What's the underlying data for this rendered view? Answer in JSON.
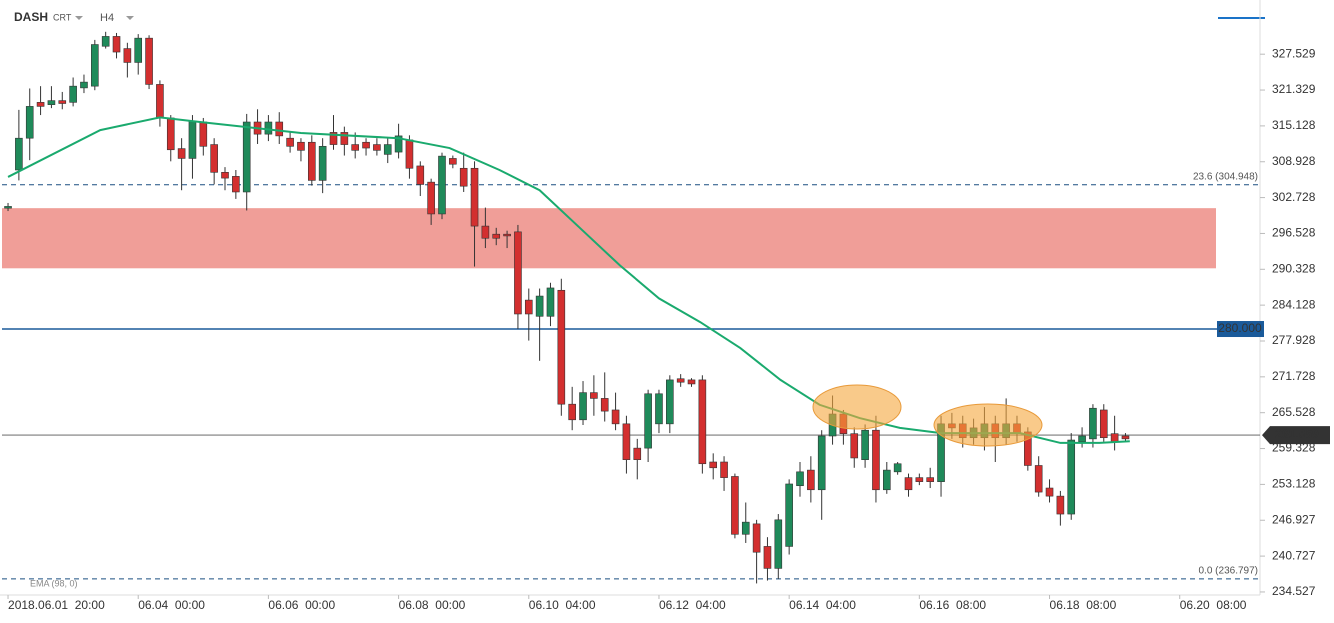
{
  "chart_data": {
    "type": "candlestick",
    "symbol": "DASH",
    "source": "CRT",
    "timeframe": "H4",
    "up_color": "#1f8a5a",
    "down_color": "#d32f2f",
    "ylim": [
      234.0,
      336.9
    ],
    "yticks": [
      327.529,
      321.329,
      315.128,
      308.928,
      302.728,
      296.528,
      290.328,
      284.128,
      277.928,
      271.728,
      265.528,
      259.328,
      253.128,
      246.927,
      240.727,
      234.527
    ],
    "xlim": [
      -0.74,
      115.4
    ],
    "xticks": [
      {
        "value": 0,
        "label": "2018.06.01  20:00"
      },
      {
        "value": 12,
        "label": "06.04  00:00"
      },
      {
        "value": 24,
        "label": "06.06  00:00"
      },
      {
        "value": 36,
        "label": "06.08  00:00"
      },
      {
        "value": 48,
        "label": "06.10  04:00"
      },
      {
        "value": 60,
        "label": "06.12  04:00"
      },
      {
        "value": 72,
        "label": "06.14  04:00"
      },
      {
        "value": 84,
        "label": "06.16  08:00"
      },
      {
        "value": 96,
        "label": "06.18  08:00"
      },
      {
        "value": 108,
        "label": "06.20  08:00"
      }
    ],
    "open": [
      300.9,
      307.5,
      313.0,
      319.2,
      318.8,
      319.5,
      319.2,
      321.7,
      322,
      328.9,
      330.6,
      328.5,
      326.1,
      330.3,
      322.3,
      316.5,
      311.2,
      309.5,
      315.8,
      311.9,
      307.1,
      306.4,
      303.7,
      315.8,
      313.7,
      315.8,
      313,
      312.3,
      312.3,
      305.7,
      314,
      314,
      311.9,
      312.3,
      311.9,
      310.2,
      310.6,
      312.7,
      308.2,
      305.4,
      299.9,
      309.5,
      307.8,
      307.8,
      297.8,
      296.4,
      296.4,
      296.8,
      285,
      282.2,
      282.2,
      286.7,
      267,
      264.3,
      269,
      268,
      266,
      263.6,
      259.4,
      259.4,
      263.6,
      263.6,
      271.4,
      271.2,
      271.2,
      257,
      257,
      254.5,
      244.5,
      246.3,
      242.4,
      238.6,
      242.4,
      252.9,
      255.6,
      252.2,
      261.5,
      265.3,
      261.9,
      257.4,
      262.5,
      252.2,
      255.3,
      254.3,
      254.3,
      254.3,
      253.6,
      263.6,
      263.6,
      261.2,
      261.2,
      263.6,
      261.2,
      263.6,
      262.2,
      256.4,
      252.5,
      251.1,
      248,
      260.5,
      261,
      266,
      261.9,
      261.5
    ],
    "high": [
      301.8,
      317.9,
      321.6,
      322,
      322,
      321,
      323.5,
      324,
      330,
      331.4,
      331.2,
      329.5,
      331,
      330.8,
      323,
      317,
      313,
      317,
      316.5,
      313,
      308,
      307.5,
      317.2,
      318,
      317,
      317.5,
      314,
      313,
      313.5,
      313,
      317,
      315,
      314,
      313,
      313,
      313,
      315.5,
      313.5,
      309,
      306,
      310.5,
      310,
      310.5,
      309,
      301,
      297.5,
      297,
      298,
      287,
      287,
      288,
      288.7,
      270,
      271,
      272,
      272.5,
      269,
      265,
      261,
      269.5,
      269.5,
      272,
      272.2,
      271.5,
      272,
      258.5,
      258,
      255,
      250,
      247,
      244,
      248,
      254,
      257,
      258,
      262.5,
      268.5,
      266,
      263,
      263.5,
      265,
      257,
      257,
      255,
      255,
      256,
      265,
      265.5,
      265,
      264.5,
      266.5,
      265,
      268,
      265,
      263,
      258,
      254,
      252,
      262,
      263,
      267,
      267,
      265,
      262
    ],
    "low": [
      300.4,
      305.7,
      309.2,
      317,
      318.2,
      318,
      318.5,
      320.8,
      321.3,
      328.5,
      326.8,
      323.5,
      324,
      321.5,
      315,
      309,
      304,
      306,
      310,
      305,
      304,
      302.5,
      300.5,
      312,
      312.5,
      312,
      310.5,
      309,
      304.8,
      303.5,
      311,
      310,
      309.5,
      310,
      310,
      308.7,
      309.5,
      306,
      303,
      298,
      299,
      307.8,
      303.7,
      290.8,
      294,
      294.5,
      294,
      280,
      278,
      274.5,
      280.5,
      265,
      262.5,
      263.4,
      265,
      264,
      262.5,
      255,
      254,
      257,
      262,
      262,
      270,
      270,
      255,
      254,
      252,
      243.8,
      243,
      236,
      236.5,
      236.8,
      241,
      251,
      250,
      247,
      260,
      260,
      256,
      256,
      250,
      251.5,
      254.8,
      251,
      253,
      252.5,
      251,
      261,
      259.5,
      260,
      259,
      257,
      260,
      260.5,
      255.5,
      251,
      250,
      246,
      247,
      259.5,
      259.5,
      260.5,
      259,
      260.5
    ],
    "close": [
      301.2,
      313,
      318.5,
      318.5,
      319.5,
      319.0,
      322,
      322.7,
      329.2,
      330.6,
      327.9,
      326.1,
      330.3,
      322.3,
      316.5,
      311,
      309.5,
      316,
      311.6,
      307.1,
      306.1,
      303.7,
      315.8,
      313.7,
      315.8,
      313.4,
      311.6,
      310.9,
      305.7,
      311.6,
      311.9,
      311.9,
      310.9,
      311.3,
      310.9,
      311.9,
      313.4,
      307.8,
      305,
      299.9,
      309.9,
      308.5,
      304.7,
      297.8,
      295.7,
      295.7,
      296.1,
      282.6,
      282.6,
      285.7,
      287.1,
      267,
      264.3,
      269,
      268,
      265.8,
      263.6,
      257.4,
      257.4,
      268.8,
      268.8,
      271.2,
      270.8,
      270.5,
      256.7,
      256,
      254.3,
      244.5,
      246.6,
      241.4,
      238.6,
      247,
      253.2,
      255.3,
      252.2,
      261.5,
      265.3,
      261.9,
      257.7,
      262.5,
      252.2,
      255.6,
      256.7,
      252.2,
      253.6,
      253.6,
      263.6,
      262.9,
      261.2,
      262.9,
      263.6,
      261.2,
      263.6,
      261.9,
      256.4,
      251.8,
      251.1,
      248,
      260.8,
      261.5,
      266.3,
      261.2,
      260.5,
      261.0
    ],
    "ema": {
      "name": "EMA (98, 0)",
      "color": "#1aaa6e",
      "x": [
        0,
        8.5,
        14,
        17.7,
        27,
        36,
        40.7,
        45.3,
        49,
        52.7,
        56.4,
        60,
        63.8,
        67.5,
        71.2,
        74.8,
        78.5,
        82.2,
        86,
        89.6,
        93.3,
        97,
        100.6,
        103.4
      ],
      "values": [
        306.3,
        314.4,
        316.6,
        315.8,
        313.9,
        313.0,
        311.3,
        307.5,
        304.0,
        297.5,
        291.0,
        285.3,
        281.2,
        276.7,
        271.2,
        266.9,
        264.6,
        262.9,
        262.0,
        262.0,
        262.0,
        260.3,
        260.3,
        260.6
      ]
    },
    "zone": {
      "low": 290.5,
      "high": 300.9,
      "color": "#f09e98"
    },
    "level_line": {
      "value": 280,
      "label": "280.000",
      "color": "#1a5a9a"
    },
    "fib_levels": [
      {
        "value": 304.948,
        "label": "23.6 (304.948)"
      },
      {
        "value": 236.797,
        "label": "0.0 (236.797)"
      }
    ],
    "last_price": {
      "value": 261.659,
      "color": "#333333"
    }
  }
}
